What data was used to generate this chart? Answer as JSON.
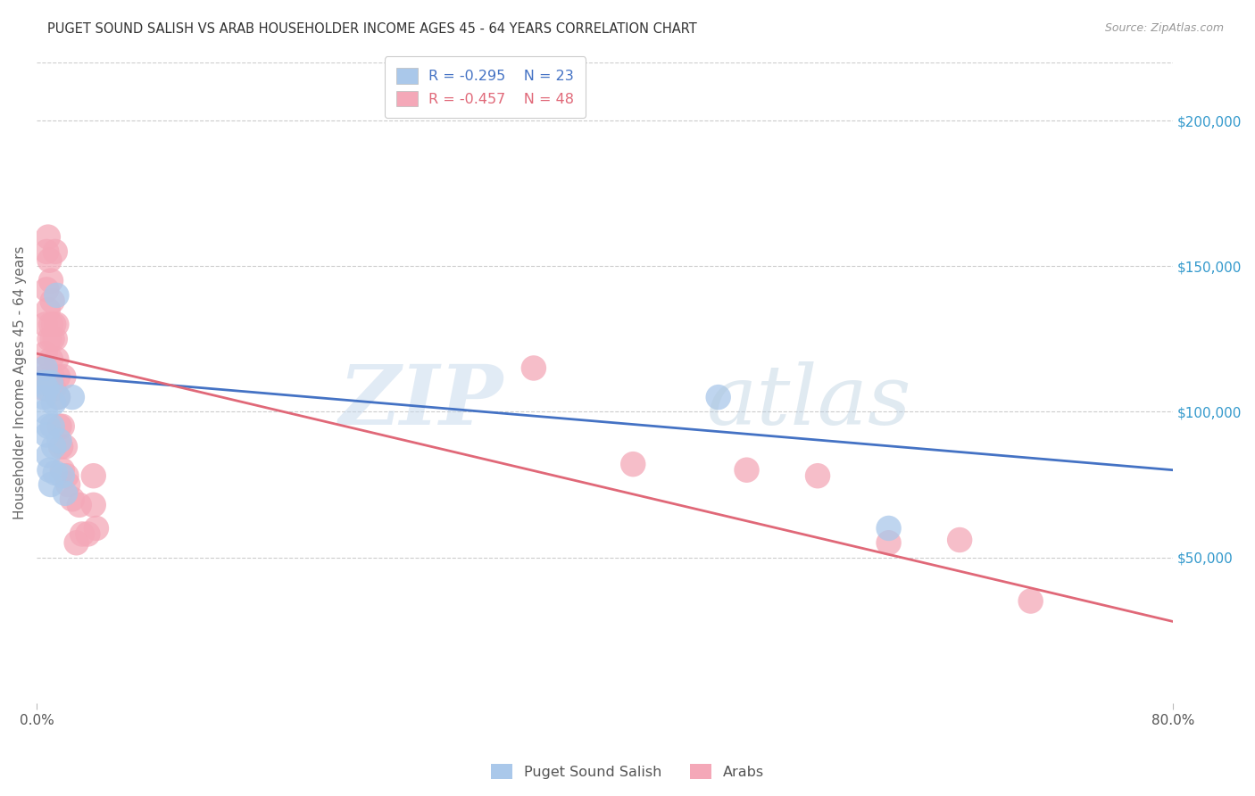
{
  "title": "PUGET SOUND SALISH VS ARAB HOUSEHOLDER INCOME AGES 45 - 64 YEARS CORRELATION CHART",
  "source": "Source: ZipAtlas.com",
  "ylabel": "Householder Income Ages 45 - 64 years",
  "ytick_labels": [
    "$50,000",
    "$100,000",
    "$150,000",
    "$200,000"
  ],
  "ytick_values": [
    50000,
    100000,
    150000,
    200000
  ],
  "ylim": [
    0,
    220000
  ],
  "xlim": [
    0.0,
    0.8
  ],
  "background_color": "#ffffff",
  "grid_color": "#cccccc",
  "salish_color": "#aac8ea",
  "arab_color": "#f4a8b8",
  "salish_line_color": "#4472c4",
  "arab_line_color": "#e06878",
  "right_tick_color": "#3399cc",
  "legend_R_salish": "-0.295",
  "legend_N_salish": "23",
  "legend_R_arab": "-0.457",
  "legend_N_arab": "48",
  "salish_scatter_x": [
    0.005,
    0.005,
    0.006,
    0.006,
    0.007,
    0.007,
    0.008,
    0.008,
    0.009,
    0.01,
    0.01,
    0.011,
    0.012,
    0.012,
    0.013,
    0.014,
    0.015,
    0.016,
    0.018,
    0.02,
    0.025,
    0.48,
    0.6
  ],
  "salish_scatter_y": [
    110000,
    105000,
    115000,
    100000,
    108000,
    92000,
    95000,
    85000,
    80000,
    110000,
    75000,
    95000,
    103000,
    88000,
    79000,
    140000,
    105000,
    90000,
    78000,
    72000,
    105000,
    105000,
    60000
  ],
  "arab_scatter_x": [
    0.005,
    0.005,
    0.006,
    0.006,
    0.006,
    0.007,
    0.007,
    0.008,
    0.008,
    0.009,
    0.009,
    0.01,
    0.01,
    0.01,
    0.011,
    0.011,
    0.011,
    0.012,
    0.012,
    0.013,
    0.013,
    0.014,
    0.014,
    0.015,
    0.015,
    0.016,
    0.017,
    0.018,
    0.018,
    0.019,
    0.02,
    0.021,
    0.022,
    0.025,
    0.028,
    0.03,
    0.032,
    0.036,
    0.04,
    0.04,
    0.042,
    0.35,
    0.42,
    0.5,
    0.55,
    0.6,
    0.65,
    0.7
  ],
  "arab_scatter_y": [
    115000,
    108000,
    130000,
    120000,
    112000,
    155000,
    142000,
    160000,
    135000,
    152000,
    125000,
    145000,
    130000,
    118000,
    138000,
    125000,
    112000,
    130000,
    108000,
    155000,
    125000,
    130000,
    118000,
    112000,
    105000,
    95000,
    88000,
    95000,
    80000,
    112000,
    88000,
    78000,
    75000,
    70000,
    55000,
    68000,
    58000,
    58000,
    68000,
    78000,
    60000,
    115000,
    82000,
    80000,
    78000,
    55000,
    56000,
    35000
  ],
  "salish_line_x": [
    0.0,
    0.8
  ],
  "salish_line_y": [
    113000,
    80000
  ],
  "arab_line_x": [
    0.0,
    0.8
  ],
  "arab_line_y": [
    120000,
    28000
  ]
}
